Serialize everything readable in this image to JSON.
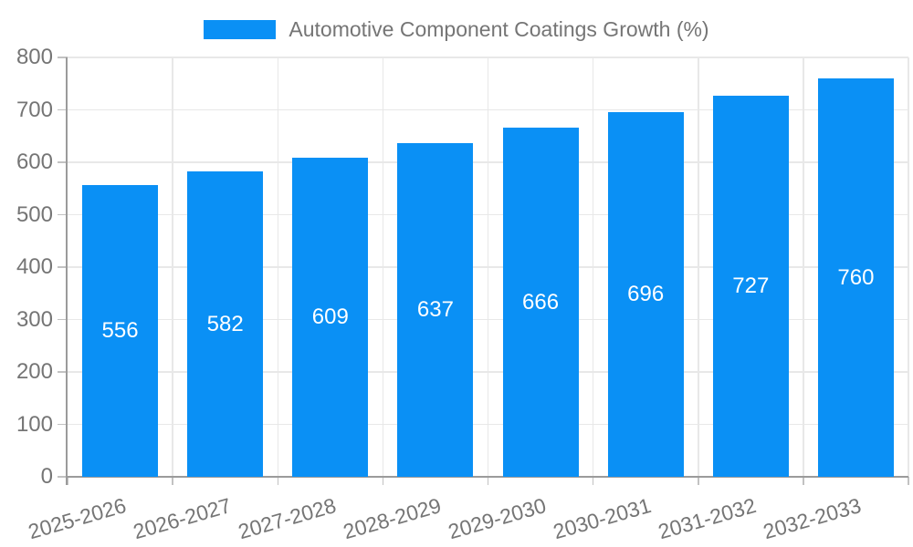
{
  "chart_data": {
    "type": "bar",
    "title": "Automotive Component Coatings Growth (%)",
    "legend": {
      "position": "top",
      "entries": [
        "Automotive Component Coatings Growth (%)"
      ]
    },
    "categories": [
      "2025-2026",
      "2026-2027",
      "2027-2028",
      "2028-2029",
      "2029-2030",
      "2030-2031",
      "2031-2032",
      "2032-2033"
    ],
    "values": [
      556,
      582,
      609,
      637,
      666,
      696,
      727,
      760
    ],
    "xlabel": "",
    "ylabel": "",
    "ylim": [
      0,
      800
    ],
    "ytick_step": 100,
    "yticks": [
      0,
      100,
      200,
      300,
      400,
      500,
      600,
      700,
      800
    ],
    "grid": true,
    "bar_value_labels_shown": true,
    "colors": {
      "bar": "#0a90f5",
      "bar_value_label": "#ffffff",
      "tick_label": "#757575",
      "legend_text": "#757575",
      "gridline": "#e8e8e8",
      "tick_mark": "#c2c2c2",
      "axis_line": "#9b9b9b",
      "background": "#ffffff"
    }
  }
}
